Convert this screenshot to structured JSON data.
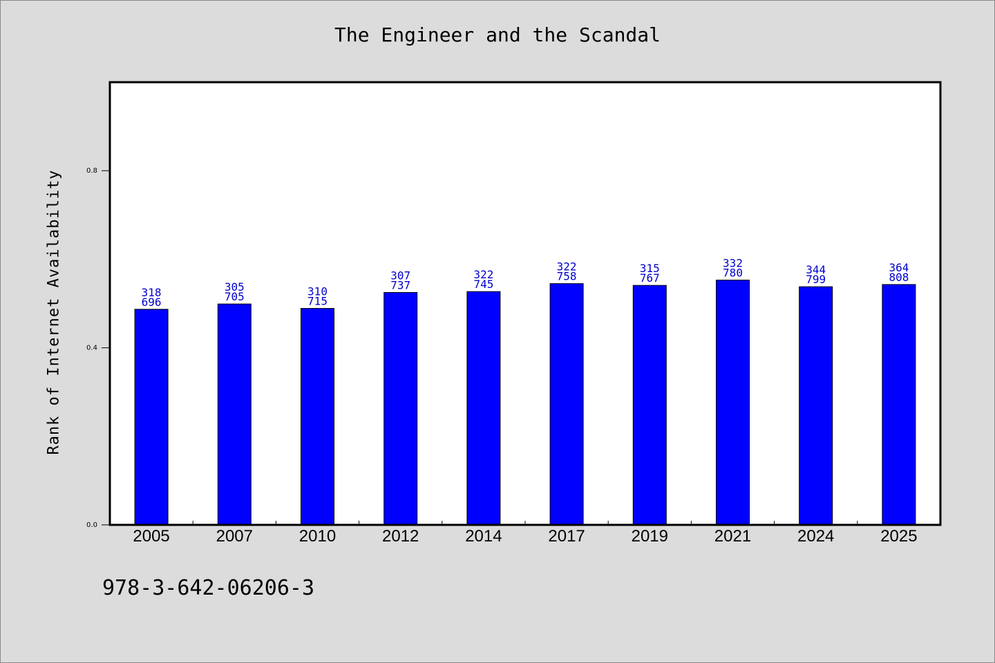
{
  "chart_data": {
    "type": "bar",
    "title": "The Engineer and the Scandal",
    "xlabel": "",
    "ylabel": "Rank of Internet Availability",
    "categories": [
      "2005",
      "2007",
      "2010",
      "2012",
      "2014",
      "2017",
      "2019",
      "2021",
      "2024",
      "2025"
    ],
    "values": [
      0.487,
      0.499,
      0.489,
      0.525,
      0.527,
      0.545,
      0.541,
      0.553,
      0.538,
      0.543
    ],
    "data_labels": [
      [
        "318",
        "696"
      ],
      [
        "305",
        "705"
      ],
      [
        "310",
        "715"
      ],
      [
        "307",
        "737"
      ],
      [
        "322",
        "745"
      ],
      [
        "322",
        "758"
      ],
      [
        "315",
        "767"
      ],
      [
        "332",
        "780"
      ],
      [
        "344",
        "799"
      ],
      [
        "364",
        "808"
      ]
    ],
    "ylim": [
      0,
      1.0
    ],
    "yticks": [
      "0.0",
      "0.4",
      "0.8"
    ],
    "bar_color": "#0000ff",
    "label_color": "#0000cc",
    "grid": false,
    "legend": "none"
  },
  "footer": {
    "isbn": "978-3-642-06206-3"
  }
}
